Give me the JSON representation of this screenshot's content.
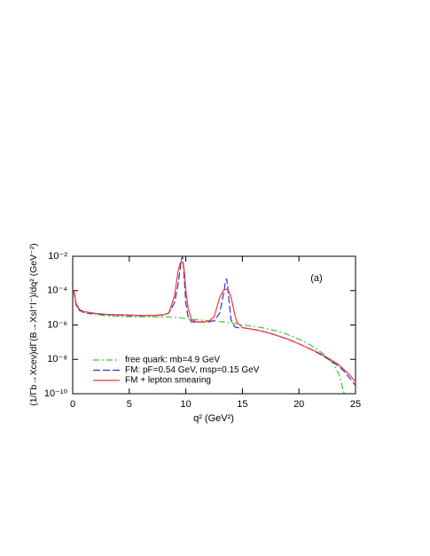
{
  "chart_data": {
    "type": "line",
    "annotation": "(a)",
    "xlabel": "q² (GeV²)",
    "ylabel": "(1/Γb→Xceν)dΓ(B→Xsl⁺l⁻)/dq²  (GeV⁻²)",
    "yscale": "log",
    "xlim": [
      0,
      25
    ],
    "xticks": [
      0,
      5,
      10,
      15,
      20,
      25
    ],
    "ylim": [
      1e-10,
      0.01
    ],
    "yticks": [
      {
        "value": 1e-10,
        "label": "10⁻¹⁰"
      },
      {
        "value": 1e-08,
        "label": "10⁻⁸"
      },
      {
        "value": 1e-06,
        "label": "10⁻⁶"
      },
      {
        "value": 0.0001,
        "label": "10⁻⁴"
      },
      {
        "value": 0.01,
        "label": "10⁻²"
      }
    ],
    "legend": "lower left",
    "x": [
      0.1,
      0.3,
      0.6,
      1,
      2,
      3,
      4,
      5,
      6,
      7,
      8,
      8.5,
      9,
      9.3,
      9.5,
      9.6,
      9.7,
      9.8,
      9.9,
      10,
      10.2,
      10.5,
      11,
      12,
      12.5,
      13,
      13.3,
      13.5,
      13.6,
      13.7,
      13.8,
      14,
      14.3,
      14.5,
      15,
      16,
      17,
      18,
      19,
      20,
      21,
      22,
      23,
      23.5,
      24,
      24.5,
      25
    ],
    "series": [
      {
        "name": "free quark: mb=4.9 GeV",
        "color": "#33cc33",
        "linestyle": "dashdot",
        "values": [
          8e-05,
          1.5e-05,
          7e-06,
          5e-06,
          4e-06,
          3.5e-06,
          3.2e-06,
          3e-06,
          3e-06,
          3e-06,
          3e-06,
          2.9e-06,
          2.8e-06,
          2.7e-06,
          2.6e-06,
          2.6e-06,
          2.5e-06,
          2.5e-06,
          2.4e-06,
          2.4e-06,
          2.3e-06,
          2.2e-06,
          2e-06,
          1.8e-06,
          1.7e-06,
          1.6e-06,
          1.5e-06,
          1.5e-06,
          1.5e-06,
          1.4e-06,
          1.4e-06,
          1.3e-06,
          1.2e-06,
          1.2e-06,
          1e-06,
          8.5e-07,
          6.5e-07,
          4.5e-07,
          2.8e-07,
          1.5e-07,
          7e-08,
          2.5e-08,
          6e-09,
          1.5e-09,
          1e-10,
          null,
          null
        ]
      },
      {
        "name": "FM: pF=0.54 GeV, msp=0.15 GeV",
        "color": "#3333cc",
        "linestyle": "dashed",
        "values": [
          0.0001,
          1.5e-05,
          7e-06,
          5.5e-06,
          4.5e-06,
          4e-06,
          3.8e-06,
          3.6e-06,
          3.5e-06,
          3.5e-06,
          4e-06,
          5e-06,
          2e-05,
          0.0002,
          0.002,
          0.006,
          0.01,
          0.002,
          0.0002,
          2e-05,
          3e-06,
          1.5e-06,
          1.5e-06,
          1.5e-06,
          1.8e-06,
          5e-06,
          5e-05,
          0.0003,
          0.0005,
          0.0002,
          3e-05,
          2e-06,
          8e-07,
          7e-07,
          7e-07,
          5.5e-07,
          4e-07,
          2.5e-07,
          1.5e-07,
          8e-08,
          4e-08,
          1.8e-08,
          7e-09,
          4e-09,
          2e-09,
          8e-10,
          3e-10
        ]
      },
      {
        "name": "FM + lepton smearing",
        "color": "#ff3333",
        "linestyle": "solid",
        "values": [
          0.00011,
          1.8e-05,
          8e-06,
          6e-06,
          4.8e-06,
          4.2e-06,
          4e-06,
          3.8e-06,
          3.6e-06,
          3.6e-06,
          3.8e-06,
          5e-06,
          5e-05,
          0.0012,
          0.004,
          0.005,
          0.0045,
          0.003,
          0.0008,
          0.0001,
          1e-05,
          2e-06,
          1.5e-06,
          1.6e-06,
          3e-06,
          4e-05,
          0.0001,
          0.00012,
          0.00012,
          0.00011,
          9e-05,
          4e-05,
          5e-06,
          1.5e-06,
          7e-07,
          5.5e-07,
          4e-07,
          2.5e-07,
          1.5e-07,
          8e-08,
          4e-08,
          2e-08,
          8e-09,
          5e-09,
          2.5e-09,
          1.2e-09,
          5e-10
        ]
      }
    ]
  }
}
